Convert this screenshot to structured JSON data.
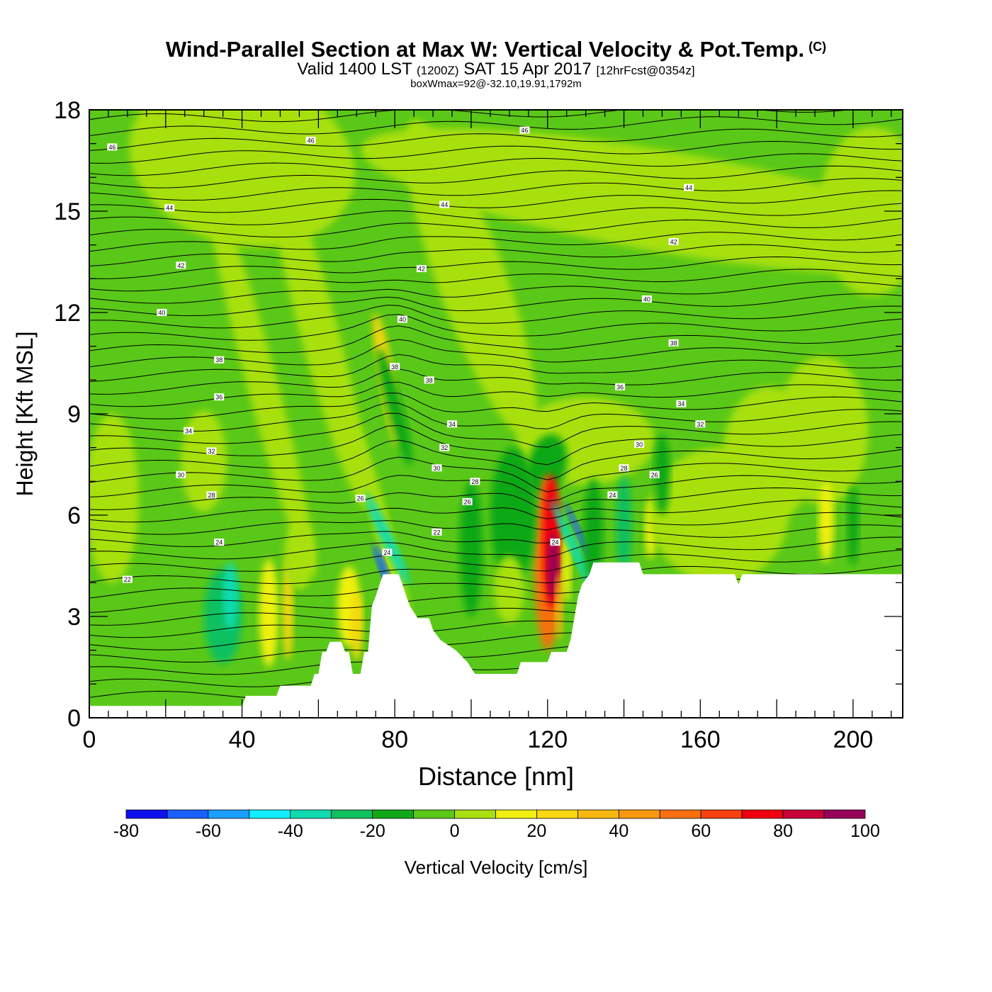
{
  "header": {
    "title": "Wind-Parallel Section at Max W: Vertical Velocity & Pot.Temp.",
    "copyright": "(C)",
    "valid_prefix": "Valid 1400 LST",
    "valid_zulu": "(1200Z)",
    "valid_date": "SAT 15 Apr 2017",
    "forecast": "[12hrFcst@0354z]",
    "box_info": "boxWmax=92@-32.10,19.91,1792m"
  },
  "chart_data": {
    "type": "contour-section",
    "xlabel": "Distance [nm]",
    "ylabel": "Height [Kft MSL]",
    "xlim": [
      0,
      213
    ],
    "ylim": [
      0,
      18
    ],
    "x_ticks": [
      0,
      40,
      80,
      120,
      160,
      200
    ],
    "y_ticks": [
      0,
      3,
      6,
      9,
      12,
      15,
      18
    ],
    "colorbar": {
      "label": "Vertical Velocity [cm/s]",
      "levels": [
        -80,
        -70,
        -60,
        -50,
        -40,
        -30,
        -20,
        -10,
        0,
        10,
        20,
        30,
        40,
        50,
        60,
        70,
        80,
        90,
        100
      ],
      "tick_labels": [
        -80,
        -60,
        -40,
        -20,
        0,
        20,
        40,
        60,
        80,
        100
      ],
      "colors": [
        "#1010ee",
        "#1a5fff",
        "#1a9fff",
        "#10eeff",
        "#10dbb0",
        "#10c060",
        "#10a818",
        "#5ac818",
        "#a8e010",
        "#f0f010",
        "#f8d810",
        "#f8b810",
        "#f89810",
        "#f87010",
        "#f84010",
        "#f00010",
        "#c8003a",
        "#96005a"
      ]
    },
    "terrain": [
      [
        0,
        0.35
      ],
      [
        40,
        0.35
      ],
      [
        41,
        0.65
      ],
      [
        49,
        0.65
      ],
      [
        50,
        0.95
      ],
      [
        58,
        0.95
      ],
      [
        59,
        1.3
      ],
      [
        60,
        1.3
      ],
      [
        61,
        1.95
      ],
      [
        62,
        1.95
      ],
      [
        63,
        2.25
      ],
      [
        66,
        2.25
      ],
      [
        67,
        1.95
      ],
      [
        68,
        1.95
      ],
      [
        69,
        1.3
      ],
      [
        71,
        1.3
      ],
      [
        72,
        1.95
      ],
      [
        73,
        1.95
      ],
      [
        74,
        3.3
      ],
      [
        75,
        3.6
      ],
      [
        76,
        3.95
      ],
      [
        77,
        4.25
      ],
      [
        81,
        4.25
      ],
      [
        82,
        3.95
      ],
      [
        83,
        3.6
      ],
      [
        84,
        3.3
      ],
      [
        86,
        2.95
      ],
      [
        89,
        2.95
      ],
      [
        90,
        2.6
      ],
      [
        92,
        2.3
      ],
      [
        96,
        2.0
      ],
      [
        99,
        1.65
      ],
      [
        101,
        1.3
      ],
      [
        112,
        1.3
      ],
      [
        113,
        1.65
      ],
      [
        120,
        1.65
      ],
      [
        121,
        1.95
      ],
      [
        125,
        1.95
      ],
      [
        126,
        2.3
      ],
      [
        127,
        2.95
      ],
      [
        128,
        3.6
      ],
      [
        129,
        3.95
      ],
      [
        131,
        4.25
      ],
      [
        132,
        4.6
      ],
      [
        144,
        4.6
      ],
      [
        145,
        4.25
      ],
      [
        169,
        4.25
      ],
      [
        170,
        3.95
      ],
      [
        171,
        4.25
      ],
      [
        213,
        4.25
      ]
    ],
    "theta_labels": [
      {
        "x": 6,
        "y": 16.9,
        "v": "46"
      },
      {
        "x": 58,
        "y": 17.1,
        "v": "46"
      },
      {
        "x": 114,
        "y": 17.4,
        "v": "46"
      },
      {
        "x": 21,
        "y": 15.1,
        "v": "44"
      },
      {
        "x": 93,
        "y": 15.2,
        "v": "44"
      },
      {
        "x": 157,
        "y": 15.7,
        "v": "44"
      },
      {
        "x": 24,
        "y": 13.4,
        "v": "42"
      },
      {
        "x": 87,
        "y": 13.3,
        "v": "42"
      },
      {
        "x": 153,
        "y": 14.1,
        "v": "42"
      },
      {
        "x": 19,
        "y": 12.0,
        "v": "40"
      },
      {
        "x": 82,
        "y": 11.8,
        "v": "40"
      },
      {
        "x": 146,
        "y": 12.4,
        "v": "40"
      },
      {
        "x": 34,
        "y": 10.6,
        "v": "38"
      },
      {
        "x": 80,
        "y": 10.4,
        "v": "38"
      },
      {
        "x": 89,
        "y": 10.0,
        "v": "38"
      },
      {
        "x": 153,
        "y": 11.1,
        "v": "38"
      },
      {
        "x": 34,
        "y": 9.5,
        "v": "36"
      },
      {
        "x": 139,
        "y": 9.8,
        "v": "36"
      },
      {
        "x": 26,
        "y": 8.5,
        "v": "34"
      },
      {
        "x": 95,
        "y": 8.7,
        "v": "34"
      },
      {
        "x": 155,
        "y": 9.3,
        "v": "34"
      },
      {
        "x": 32,
        "y": 7.9,
        "v": "32"
      },
      {
        "x": 93,
        "y": 8.0,
        "v": "32"
      },
      {
        "x": 160,
        "y": 8.7,
        "v": "32"
      },
      {
        "x": 24,
        "y": 7.2,
        "v": "30"
      },
      {
        "x": 91,
        "y": 7.4,
        "v": "30"
      },
      {
        "x": 144,
        "y": 8.1,
        "v": "30"
      },
      {
        "x": 32,
        "y": 6.6,
        "v": "28"
      },
      {
        "x": 101,
        "y": 7.0,
        "v": "28"
      },
      {
        "x": 140,
        "y": 7.4,
        "v": "28"
      },
      {
        "x": 71,
        "y": 6.5,
        "v": "26"
      },
      {
        "x": 99,
        "y": 6.4,
        "v": "26"
      },
      {
        "x": 148,
        "y": 7.2,
        "v": "26"
      },
      {
        "x": 34,
        "y": 5.2,
        "v": "24"
      },
      {
        "x": 78,
        "y": 4.9,
        "v": "24"
      },
      {
        "x": 137,
        "y": 6.6,
        "v": "24"
      },
      {
        "x": 122,
        "y": 5.2,
        "v": "24"
      },
      {
        "x": 10,
        "y": 4.1,
        "v": "22"
      },
      {
        "x": 91,
        "y": 5.5,
        "v": "22"
      }
    ]
  }
}
